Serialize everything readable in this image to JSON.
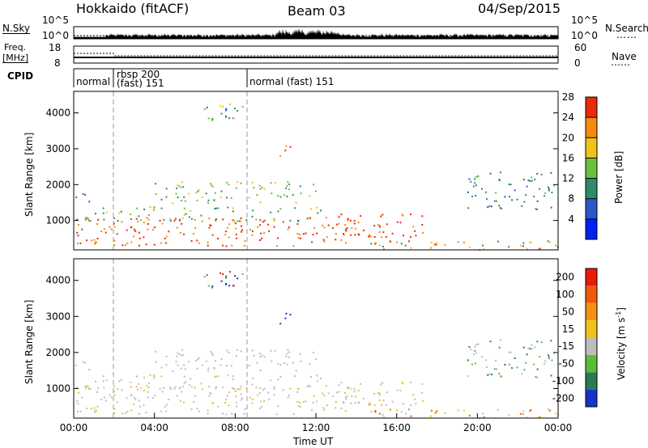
{
  "header": {
    "station": "Hokkaido (fitACF)",
    "beam": "Beam 03",
    "date": "04/Sep/2015"
  },
  "left_labels": {
    "nsky": "N.Sky",
    "freq_line1": "Freq.",
    "freq_line2": "[MHz]",
    "cpid": "CPID"
  },
  "right_labels": {
    "nsearch": "N.Search",
    "nave": "Nave"
  },
  "noise_axis": {
    "left_top": "10^5",
    "left_bottom": "10^0",
    "right_top": "10^5",
    "right_bottom": "10^0"
  },
  "freq_axis": {
    "left_top": "18",
    "left_bottom": "8",
    "right_top": "60",
    "right_bottom": "0"
  },
  "cpid_segments": [
    {
      "label": "normal",
      "start_hour": 0.0
    },
    {
      "label": "rbsp 200",
      "label2": "(fast) 151",
      "start_hour": 2.0
    },
    {
      "label": "normal (fast) 151",
      "start_hour": 8.6
    }
  ],
  "chart_data": [
    {
      "type": "heatmap",
      "name": "power",
      "xlabel": "",
      "ylabel": "Slant Range [km]",
      "xlim": [
        0,
        24
      ],
      "ylim": [
        180,
        4600
      ],
      "yticks": [
        "1000",
        "2000",
        "3000",
        "4000"
      ],
      "colorbar": {
        "label": "Power [dB]",
        "ticks": [
          "4",
          "8",
          "12",
          "16",
          "20",
          "24",
          "28"
        ],
        "range": [
          0,
          30
        ],
        "colors": [
          "#0022ee",
          "#2a58c8",
          "#2f8a6a",
          "#6abf3c",
          "#f1c21a",
          "#f58a10",
          "#e82a0a"
        ]
      }
    },
    {
      "type": "heatmap",
      "name": "velocity",
      "xlabel": "Time UT",
      "ylabel": "Slant Range [km]",
      "xlim": [
        0,
        24
      ],
      "ylim": [
        180,
        4600
      ],
      "xticks": [
        "00:00",
        "04:00",
        "08:00",
        "12:00",
        "16:00",
        "20:00",
        "00:00"
      ],
      "yticks": [
        "1000",
        "2000",
        "3000",
        "4000"
      ],
      "colorbar": {
        "label": "Velocity [m s-1]",
        "ticks": [
          "200",
          "100",
          "50",
          "15",
          "-15",
          "-50",
          "-100",
          "-200"
        ],
        "colors": [
          "#1633c8",
          "#2a7a56",
          "#5cbd34",
          "#bdbdbd",
          "#f1c21a",
          "#f39214",
          "#f05a0a",
          "#e81a0a"
        ]
      }
    }
  ]
}
